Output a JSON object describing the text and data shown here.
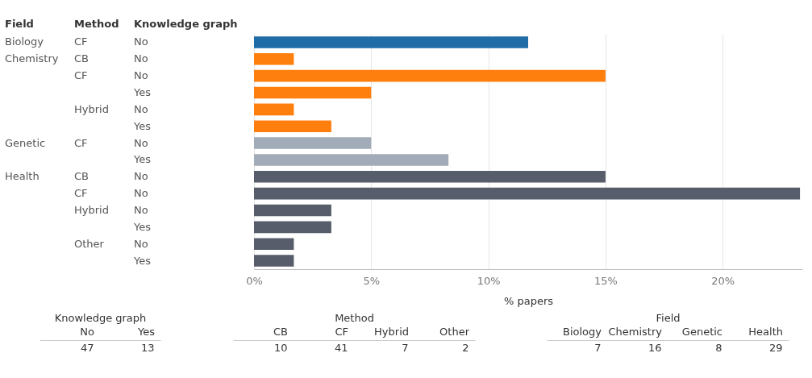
{
  "chart_data": [
    {
      "type": "bar",
      "orientation": "horizontal",
      "xlabel": "% papers",
      "annotations": [
        "Field",
        "Method",
        "Knowledge graph"
      ],
      "categories": [
        "Biology CF No",
        "Chemistry CB No",
        "CF No",
        "Yes",
        "Hybrid No",
        "Yes",
        "Genetic CF No",
        "Yes",
        "Health CB No",
        "CF No",
        "Hybrid No",
        "Yes",
        "Other No",
        "Yes"
      ],
      "values": [
        11.7,
        1.7,
        15,
        5,
        1.7,
        3.3,
        5,
        8.3,
        15,
        23.3,
        3.3,
        3.3,
        1.7,
        1.7
      ],
      "colors": [
        "#1f6ca6",
        "#ff7f0e",
        "#ff7f0e",
        "#ff7f0e",
        "#ff7f0e",
        "#ff7f0e",
        "#a2abb8",
        "#a2abb8",
        "#575d6a",
        "#575d6a",
        "#575d6a",
        "#575d6a",
        "#575d6a",
        "#575d6a"
      ],
      "xlim": [
        0,
        23.4
      ],
      "xticks": [
        {
          "value": 0,
          "label": "0%"
        },
        {
          "value": 5,
          "label": "5%"
        },
        {
          "value": 10,
          "label": "10%"
        },
        {
          "value": 15,
          "label": "15%"
        },
        {
          "value": 20,
          "label": "20%"
        }
      ],
      "grid": "x"
    },
    {
      "type": "other",
      "title": "Knowledge graph",
      "categories": [
        "No",
        "Yes"
      ],
      "values": [
        47,
        13
      ],
      "data_labels": true
    },
    {
      "type": "other",
      "title": "Method",
      "categories": [
        "CB",
        "CF",
        "Hybrid",
        "Other"
      ],
      "values": [
        10,
        41,
        7,
        2
      ],
      "data_labels": true
    },
    {
      "type": "other",
      "title": "Field",
      "categories": [
        "Biology",
        "Chemistry",
        "Genetic",
        "Health"
      ],
      "values": [
        7,
        16,
        8,
        29
      ],
      "data_labels": true
    }
  ]
}
